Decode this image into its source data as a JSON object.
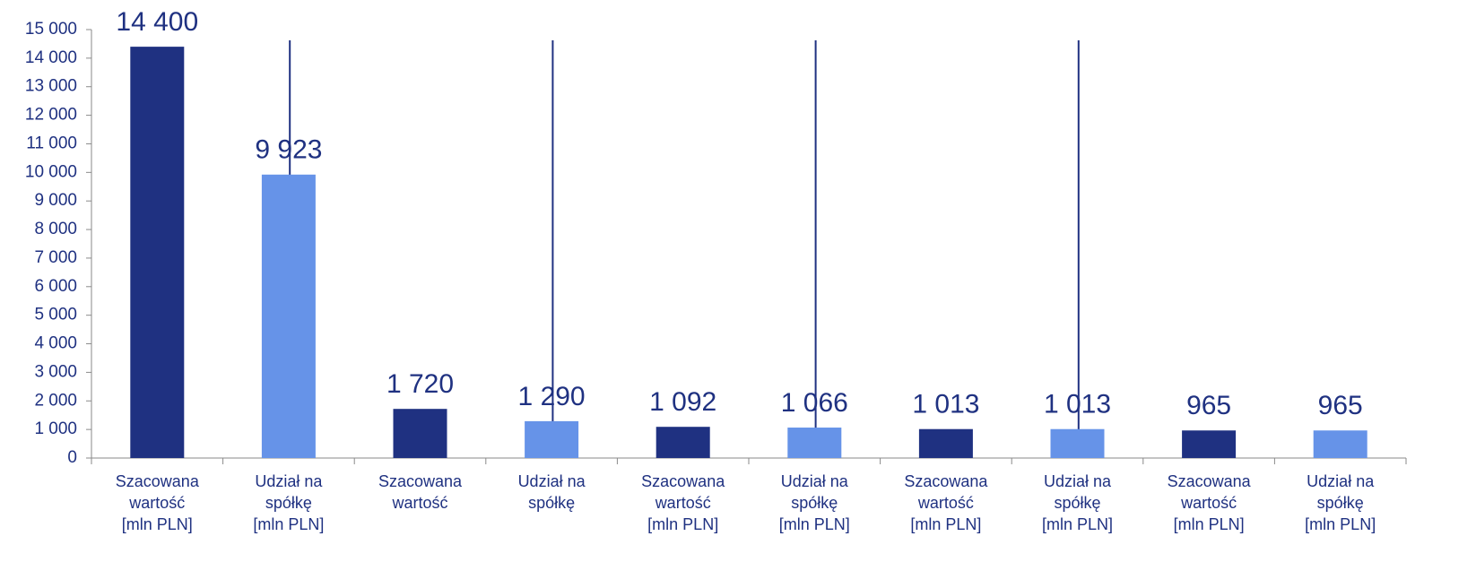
{
  "chart_data": {
    "type": "bar",
    "categories": [
      [
        "Szacowana",
        "wartość",
        "[mln PLN]"
      ],
      [
        "Udział na",
        "spółkę",
        "[mln PLN]"
      ],
      [
        "Szacowana",
        "wartość"
      ],
      [
        "Udział na",
        "spółkę"
      ],
      [
        "Szacowana",
        "wartość",
        "[mln PLN]"
      ],
      [
        "Udział na",
        "spółkę",
        "[mln PLN]"
      ],
      [
        "Szacowana",
        "wartość",
        "[mln PLN]"
      ],
      [
        "Udział na",
        "spółkę",
        "[mln PLN]"
      ],
      [
        "Szacowana",
        "wartość",
        "[mln PLN]"
      ],
      [
        "Udział na",
        "spółkę",
        "[mln PLN]"
      ]
    ],
    "values": [
      14400,
      9923,
      1720,
      1290,
      1092,
      1066,
      1013,
      1013,
      965,
      965
    ],
    "value_labels": [
      "14 400",
      "9 923",
      "1 720",
      "1 290",
      "1 092",
      "1 066",
      "1 013",
      "1 013",
      "965",
      "965"
    ],
    "colors": [
      "#1f3181",
      "#6693e8",
      "#1f3181",
      "#6693e8",
      "#1f3181",
      "#6693e8",
      "#1f3181",
      "#6693e8",
      "#1f3181",
      "#6693e8"
    ],
    "ylim": [
      0,
      15000
    ],
    "yticks": [
      0,
      {
        "value": 1000,
        "label": "1 000"
      },
      {
        "value": 2000,
        "label": "2 000"
      },
      {
        "value": 3000,
        "label": "3 000"
      },
      {
        "value": 4000,
        "label": "4 000"
      },
      {
        "value": 5000,
        "label": "5 000"
      },
      {
        "value": 6000,
        "label": "6 000"
      },
      {
        "value": 7000,
        "label": "7 000"
      },
      {
        "value": 8000,
        "label": "8 000"
      },
      {
        "value": 9000,
        "label": "9 000"
      },
      {
        "value": 10000,
        "label": "10 000"
      },
      {
        "value": 11000,
        "label": "11 000"
      },
      {
        "value": 12000,
        "label": "12 000"
      },
      {
        "value": 13000,
        "label": "13 000"
      },
      {
        "value": 14000,
        "label": "14 000"
      },
      {
        "value": 15000,
        "label": "15 000"
      }
    ],
    "grid": false
  }
}
